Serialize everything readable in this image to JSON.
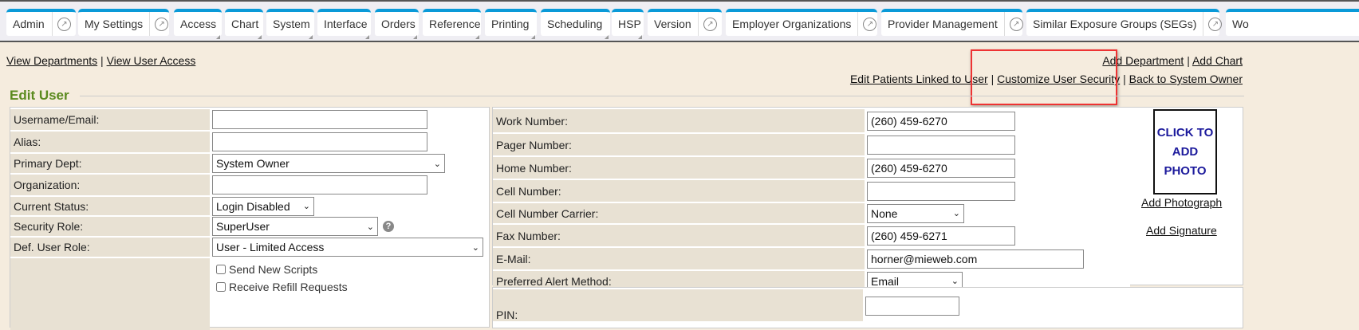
{
  "tabs": [
    {
      "label": "Admin",
      "ext": true,
      "dd": false
    },
    {
      "label": "My Settings",
      "ext": true,
      "dd": false
    },
    {
      "label": "Access",
      "ext": false,
      "dd": true
    },
    {
      "label": "Chart",
      "ext": false,
      "dd": true
    },
    {
      "label": "System",
      "ext": false,
      "dd": true
    },
    {
      "label": "Interface",
      "ext": false,
      "dd": true
    },
    {
      "label": "Orders",
      "ext": false,
      "dd": true
    },
    {
      "label": "Reference",
      "ext": false,
      "dd": true
    },
    {
      "label": "Printing",
      "ext": false,
      "dd": true
    },
    {
      "label": "Scheduling",
      "ext": false,
      "dd": true
    },
    {
      "label": "HSP",
      "ext": false,
      "dd": true
    },
    {
      "label": "Version",
      "ext": true,
      "dd": false
    },
    {
      "label": "Employer Organizations",
      "ext": true,
      "dd": false
    },
    {
      "label": "Provider Management",
      "ext": true,
      "dd": false
    },
    {
      "label": "Similar Exposure Groups (SEGs)",
      "ext": true,
      "dd": false
    },
    {
      "label": "Wo",
      "ext": false,
      "dd": false
    }
  ],
  "links": {
    "view_departments": "View Departments",
    "view_user_access": "View User Access",
    "add_department": "Add Department",
    "add_chart": "Add Chart",
    "edit_patients": "Edit Patients Linked to User",
    "customize_security": "Customize User Security",
    "back_owner": "Back to System Owner",
    "sep": "|"
  },
  "section_title": "Edit User",
  "left_form": {
    "username": {
      "label": "Username/Email:",
      "value": ""
    },
    "alias": {
      "label": "Alias:",
      "value": ""
    },
    "primary_dept": {
      "label": "Primary Dept:",
      "value": "System Owner"
    },
    "organization": {
      "label": "Organization:",
      "value": ""
    },
    "current_status": {
      "label": "Current Status:",
      "value": "Login Disabled"
    },
    "security_role": {
      "label": "Security Role:",
      "value": "SuperUser"
    },
    "def_user_role": {
      "label": "Def. User Role:",
      "value": "User - Limited Access"
    },
    "send_new_scripts": "Send New Scripts",
    "receive_refill": "Receive Refill Requests"
  },
  "right_form": {
    "work": {
      "label": "Work Number:",
      "value": "(260) 459-6270"
    },
    "pager": {
      "label": "Pager Number:",
      "value": ""
    },
    "home": {
      "label": "Home Number:",
      "value": "(260) 459-6270"
    },
    "cell": {
      "label": "Cell Number:",
      "value": ""
    },
    "carrier": {
      "label": "Cell Number Carrier:",
      "value": "None"
    },
    "fax": {
      "label": "Fax Number:",
      "value": "(260) 459-6271"
    },
    "email": {
      "label": "E-Mail:",
      "value": "horner@mieweb.com"
    },
    "alert": {
      "label": "Preferred Alert Method:",
      "value": "Email"
    },
    "pin": {
      "label": "PIN:"
    }
  },
  "photo": {
    "text": "CLICK TO ADD PHOTO",
    "add_photo": "Add Photograph",
    "add_signature": "Add Signature"
  }
}
